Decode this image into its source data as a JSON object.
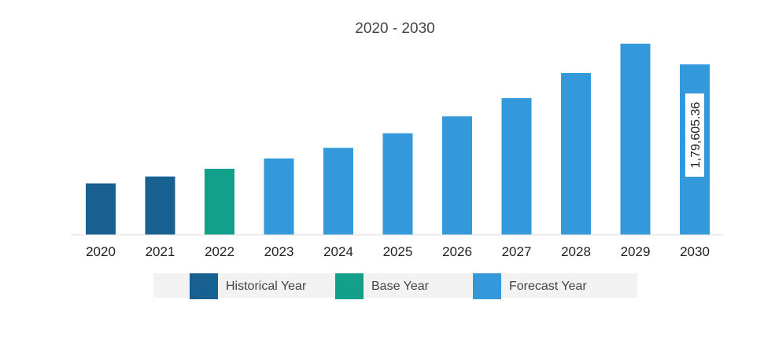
{
  "chart_data": {
    "type": "bar",
    "title": "2020 - 2030",
    "xlabel": "",
    "ylabel": "",
    "categories": [
      "2020",
      "2021",
      "2022",
      "2023",
      "2024",
      "2025",
      "2026",
      "2027",
      "2028",
      "2029",
      "2030"
    ],
    "values": [
      54200,
      61500,
      69600,
      80500,
      91700,
      107000,
      124800,
      144000,
      170500,
      201300,
      179605.36
    ],
    "groups": [
      "historical",
      "historical",
      "base",
      "forecast",
      "forecast",
      "forecast",
      "forecast",
      "forecast",
      "forecast",
      "forecast",
      "forecast"
    ],
    "data_labels": [
      {
        "category": "2030",
        "text": "1,79,605.36"
      }
    ],
    "ylim": [
      0,
      230000
    ],
    "grid": false,
    "legend_position": "bottom",
    "legend": [
      {
        "key": "historical",
        "label": "Historical Year",
        "color": "#17608f"
      },
      {
        "key": "base",
        "label": "Base Year",
        "color": "#13a08a"
      },
      {
        "key": "forecast",
        "label": "Forecast Year",
        "color": "#3399da"
      }
    ]
  },
  "colors": {
    "axis": "#dddddd",
    "legend_background": "#f2f2f2",
    "data_label_background": "#ffffff"
  }
}
